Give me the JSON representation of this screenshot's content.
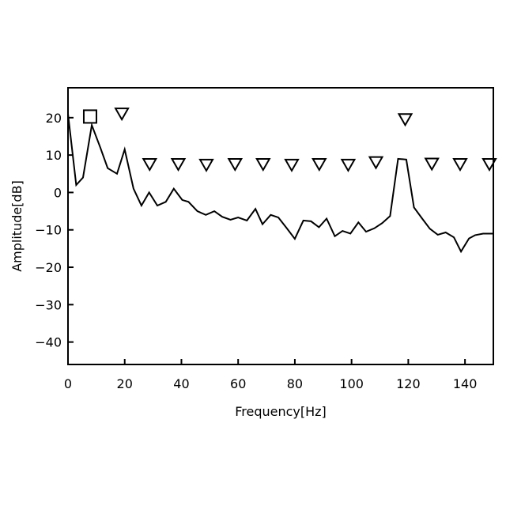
{
  "chart_data": {
    "type": "line",
    "title": "",
    "xlabel": "Frequency[Hz]",
    "ylabel": "Amplitude[dB]",
    "xlim": [
      0,
      150
    ],
    "ylim": [
      -46,
      28
    ],
    "xticks": [
      0,
      20,
      40,
      60,
      80,
      100,
      120,
      140
    ],
    "yticks": [
      20,
      10,
      0,
      -10,
      -20,
      -30,
      -40
    ],
    "xtick_labels": [
      "0",
      "20",
      "40",
      "60",
      "80",
      "100",
      "120",
      "140"
    ],
    "ytick_labels": [
      "20",
      "10",
      "0",
      "−10",
      "−20",
      "−30",
      "−40"
    ],
    "grid": false,
    "line_color": "#000000",
    "series": [
      {
        "x": [
          0,
          2.9,
          5.3,
          8.4,
          11.4,
          14.0,
          17.3,
          20.0,
          23.1,
          25.9,
          28.6,
          31.5,
          34.5,
          37.3,
          40.3,
          42.5,
          45.6,
          48.6,
          51.6,
          54.4,
          57.3,
          60.0,
          63.1,
          66.1,
          68.6,
          71.5,
          74.2,
          77.1,
          80.0,
          83.0,
          85.7,
          88.5,
          91.2,
          94.1,
          96.8,
          99.6,
          102.4,
          105.1,
          108.0,
          110.8,
          113.6,
          116.4,
          119.3,
          122.0,
          124.9,
          127.6,
          130.4,
          133.2,
          136.1,
          138.6,
          141.4,
          143.6,
          146.4,
          150.0
        ],
        "y": [
          21,
          2,
          4,
          18,
          12,
          6.5,
          5,
          11.5,
          1,
          -3.5,
          0,
          -3.5,
          -2.5,
          1,
          -2,
          -2.5,
          -5,
          -6,
          -5,
          -6.5,
          -7.3,
          -6.7,
          -7.5,
          -4.4,
          -8.5,
          -6,
          -6.7,
          -9.5,
          -12.4,
          -7.5,
          -7.7,
          -9.3,
          -7,
          -11.7,
          -10.3,
          -11,
          -8,
          -10.5,
          -9.6,
          -8.2,
          -6.3,
          9,
          8.8,
          -4,
          -7,
          -9.7,
          -11.3,
          -10.7,
          -12,
          -15.8,
          -12.3,
          -11.4,
          -11,
          -11
        ]
      }
    ],
    "markers": [
      {
        "shape": "square",
        "x": 7.8,
        "y": 20.3
      },
      {
        "shape": "triangle-down",
        "x": 19.0,
        "y": 21.0
      },
      {
        "shape": "triangle-down",
        "x": 28.8,
        "y": 7.5
      },
      {
        "shape": "triangle-down",
        "x": 38.9,
        "y": 7.5
      },
      {
        "shape": "triangle-down",
        "x": 48.8,
        "y": 7.3
      },
      {
        "shape": "triangle-down",
        "x": 58.9,
        "y": 7.5
      },
      {
        "shape": "triangle-down",
        "x": 68.8,
        "y": 7.5
      },
      {
        "shape": "triangle-down",
        "x": 78.9,
        "y": 7.3
      },
      {
        "shape": "triangle-down",
        "x": 88.6,
        "y": 7.5
      },
      {
        "shape": "triangle-down",
        "x": 98.8,
        "y": 7.3
      },
      {
        "shape": "triangle-down",
        "x": 108.6,
        "y": 8.0
      },
      {
        "shape": "triangle-down",
        "x": 118.9,
        "y": 19.5
      },
      {
        "shape": "triangle-down",
        "x": 128.3,
        "y": 7.6
      },
      {
        "shape": "triangle-down",
        "x": 138.3,
        "y": 7.5
      },
      {
        "shape": "triangle-down",
        "x": 148.6,
        "y": 7.5
      }
    ]
  }
}
